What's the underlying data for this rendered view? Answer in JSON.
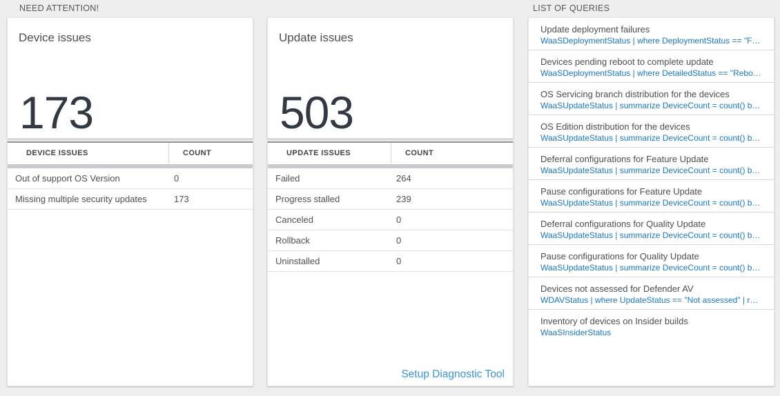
{
  "section_labels": {
    "need_attention": "NEED ATTENTION!",
    "list_of_queries": "LIST OF QUERIES"
  },
  "tiles": [
    {
      "title": "Device issues",
      "count": "173",
      "table": {
        "columns": [
          "DEVICE ISSUES",
          "COUNT"
        ],
        "rows": [
          {
            "label": "Out of support OS Version",
            "count": "0"
          },
          {
            "label": "Missing multiple security updates",
            "count": "173"
          }
        ]
      }
    },
    {
      "title": "Update issues",
      "count": "503",
      "table": {
        "columns": [
          "UPDATE ISSUES",
          "COUNT"
        ],
        "rows": [
          {
            "label": "Failed",
            "count": "264"
          },
          {
            "label": "Progress stalled",
            "count": "239"
          },
          {
            "label": "Canceled",
            "count": "0"
          },
          {
            "label": "Rollback",
            "count": "0"
          },
          {
            "label": "Uninstalled",
            "count": "0"
          }
        ]
      },
      "footer_link": "Setup Diagnostic Tool"
    }
  ],
  "queries": [
    {
      "name": "Update deployment failures",
      "query": "WaaSDeploymentStatus | where DeploymentStatus == \"Failed\" |..."
    },
    {
      "name": "Devices pending reboot to complete update",
      "query": "WaaSDeploymentStatus | where DetailedStatus == \"Reboot pend..."
    },
    {
      "name": "OS Servicing branch distribution for the devices",
      "query": "WaaSUpdateStatus | summarize DeviceCount = count() by OSSer..."
    },
    {
      "name": "OS Edition distribution for the devices",
      "query": "WaaSUpdateStatus | summarize DeviceCount = count() by OSEdit..."
    },
    {
      "name": "Deferral configurations for Feature Update",
      "query": "WaaSUpdateStatus | summarize DeviceCount = count() by Featur..."
    },
    {
      "name": "Pause configurations for Feature Update",
      "query": "WaaSUpdateStatus | summarize DeviceCount = count() by Featur..."
    },
    {
      "name": "Deferral configurations for Quality Update",
      "query": "WaaSUpdateStatus | summarize DeviceCount = count() by Qualit..."
    },
    {
      "name": "Pause configurations for Quality Update",
      "query": "WaaSUpdateStatus | summarize DeviceCount = count() by Qualit..."
    },
    {
      "name": "Devices not assessed for Defender AV",
      "query": "WDAVStatus | where UpdateStatus == \"Not assessed\" | render ta..."
    },
    {
      "name": "Inventory of devices on Insider builds",
      "query": "WaaSInsiderStatus"
    }
  ],
  "colors": {
    "background": "#eeeeee",
    "card": "#ffffff",
    "query_blue": "#1a78c0",
    "link_blue": "#3897d8",
    "big_number": "#333942",
    "scrollbar_track": "#c8cbcf",
    "table_top_border": "#949494"
  }
}
